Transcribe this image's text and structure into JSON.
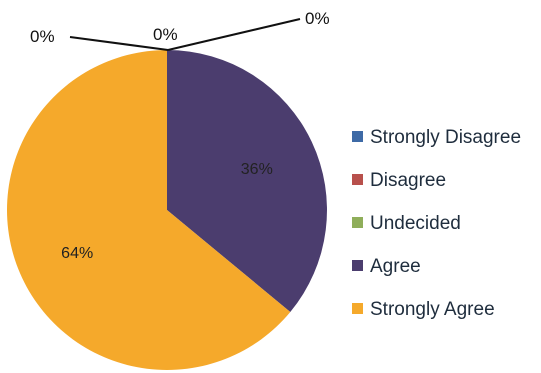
{
  "chart_data": {
    "type": "pie",
    "categories": [
      "Strongly Disagree",
      "Disagree",
      "Undecided",
      "Agree",
      "Strongly Agree"
    ],
    "values": [
      0,
      0,
      0,
      36,
      64
    ],
    "labels": [
      "0%",
      "0%",
      "0%",
      "36%",
      "64%"
    ],
    "colors": [
      "#3e6aa6",
      "#b8504c",
      "#8fae5a",
      "#4b3d6e",
      "#f5a92b"
    ],
    "legend_position": "right",
    "start_angle_deg": 0,
    "direction": "clockwise"
  }
}
